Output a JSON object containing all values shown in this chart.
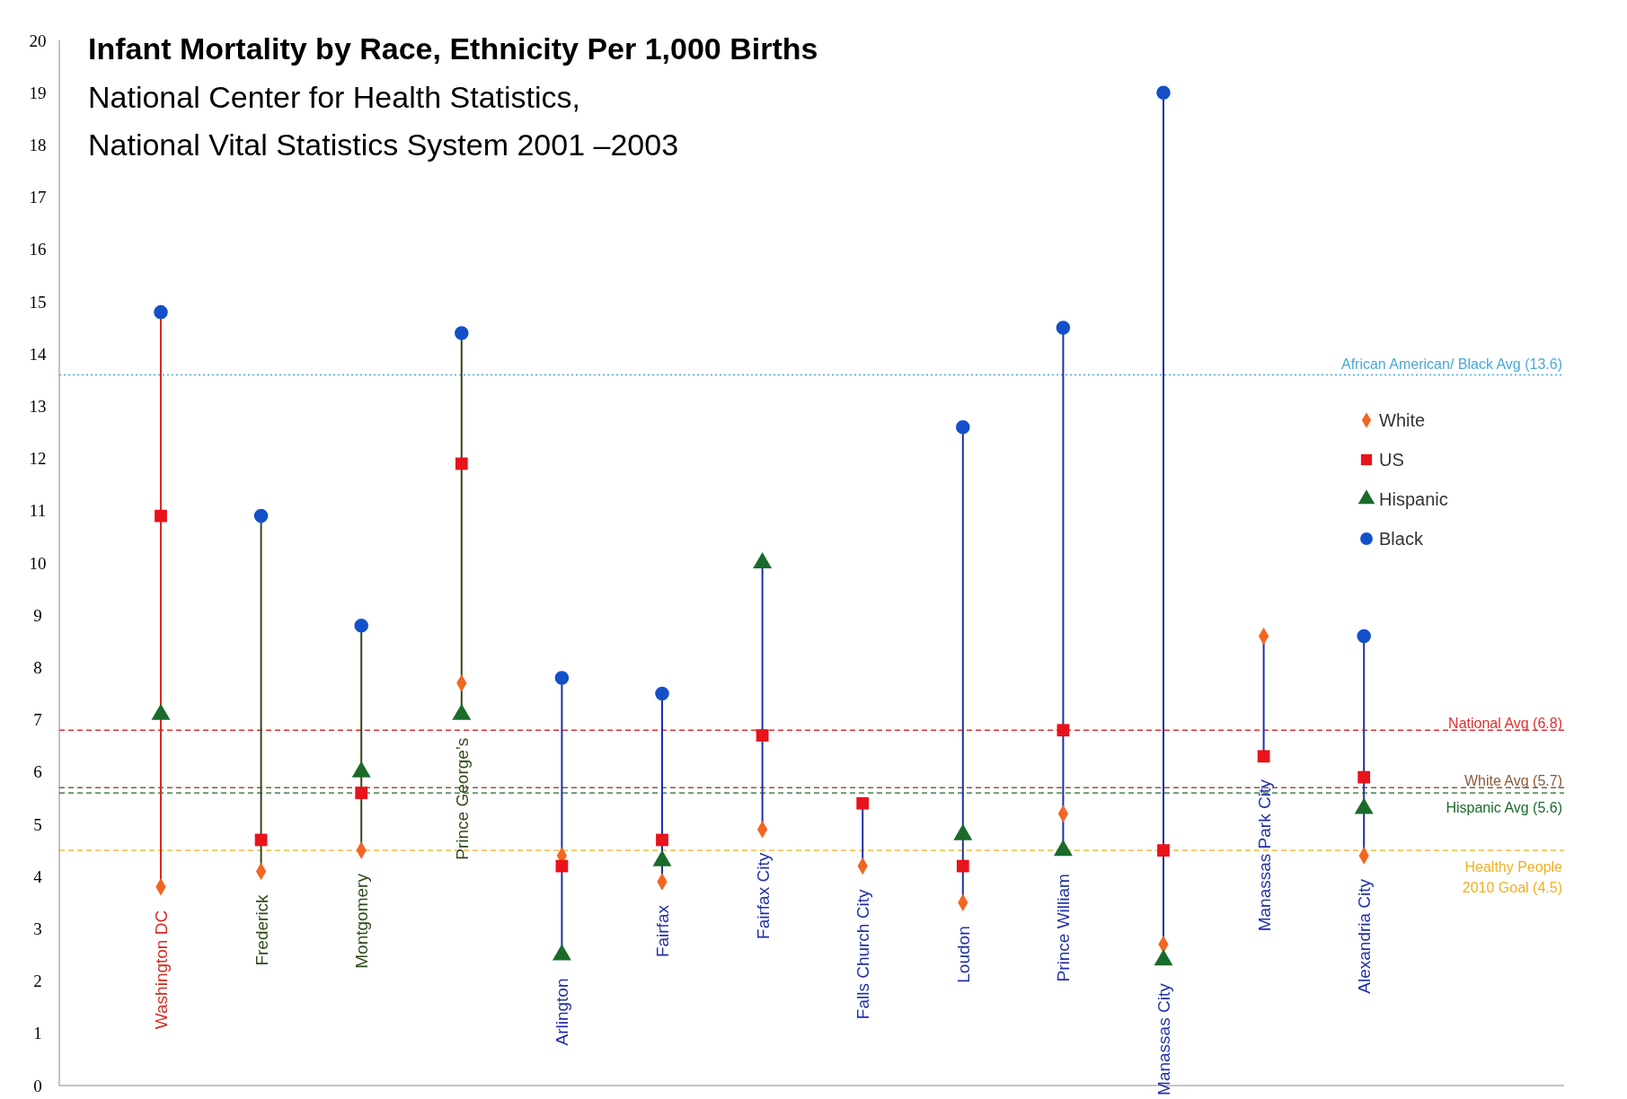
{
  "chart_data": {
    "type": "scatter",
    "title": "Infant Mortality by Race, Ethnicity Per 1,000 Births",
    "subtitle": "National Center for Health Statistics,\nNational Vital Statistics System 2001 –2003",
    "categories": [
      "Washington DC",
      "Frederick",
      "Montgomery",
      "Prince George’s",
      "Arlington",
      "Fairfax",
      "Fairfax City",
      "Falls Church City",
      "Loudon",
      "Prince William",
      "Manassas City",
      "Manassas Park City",
      "Alexandria City"
    ],
    "colors": [
      "#d42a1e",
      "#2e4a1a",
      "#2e4a1a",
      "#2e4a1a",
      "#1f2fa8",
      "#1f2fa8",
      "#1f2fa8",
      "#1f2fa8",
      "#1f2fa8",
      "#1f2fa8",
      "#1f2fa8",
      "#1f2fa8",
      "#1f2fa8"
    ],
    "series": [
      {
        "name": "White",
        "color": "#f26522",
        "marker": "diamond",
        "values": [
          3.8,
          4.1,
          4.5,
          7.7,
          4.4,
          3.9,
          4.9,
          4.2,
          3.5,
          5.2,
          2.7,
          8.6,
          4.4
        ]
      },
      {
        "name": "US",
        "color": "#e8131b",
        "marker": "square",
        "values": [
          10.9,
          4.7,
          5.6,
          11.9,
          4.2,
          4.7,
          6.7,
          5.4,
          4.2,
          6.8,
          4.5,
          6.3,
          5.9
        ]
      },
      {
        "name": "Hispanic",
        "color": "#1a6b2a",
        "marker": "triangle",
        "values": [
          7.1,
          null,
          6.0,
          7.1,
          2.5,
          4.3,
          10.0,
          null,
          4.8,
          4.5,
          2.4,
          null,
          5.3
        ]
      },
      {
        "name": "Black",
        "color": "#1450c8",
        "marker": "circle",
        "values": [
          14.8,
          10.9,
          8.8,
          14.4,
          7.8,
          7.5,
          null,
          null,
          12.6,
          14.5,
          19.0,
          null,
          8.6
        ]
      }
    ],
    "ylim": [
      0,
      20
    ],
    "yticks": [
      0,
      1,
      2,
      3,
      4,
      5,
      6,
      7,
      8,
      9,
      10,
      11,
      12,
      13,
      14,
      15,
      16,
      17,
      18,
      19,
      20
    ],
    "grid": false,
    "legend": "right",
    "ref_lines": [
      {
        "axis": "y",
        "value": 13.6,
        "label": "African American/ Black Avg (13.6)",
        "color": "#4aa8d8",
        "line_style": "dotted"
      },
      {
        "axis": "y",
        "value": 6.8,
        "label": "National Avg (6.8)",
        "color": "#e03030",
        "line_style": "dashed"
      },
      {
        "axis": "y",
        "value": 5.7,
        "label": "White Avg (5.7)",
        "color": "#8a5a3a",
        "line_style": "dashed"
      },
      {
        "axis": "y",
        "value": 5.6,
        "label": "Hispanic Avg (5.6)",
        "color": "#1a6b2a",
        "line_style": "dashed"
      },
      {
        "axis": "y",
        "value": 4.5,
        "label": "Healthy People 2010 Goal (4.5)",
        "color": "#f0b020",
        "line_style": "dashed"
      }
    ]
  }
}
